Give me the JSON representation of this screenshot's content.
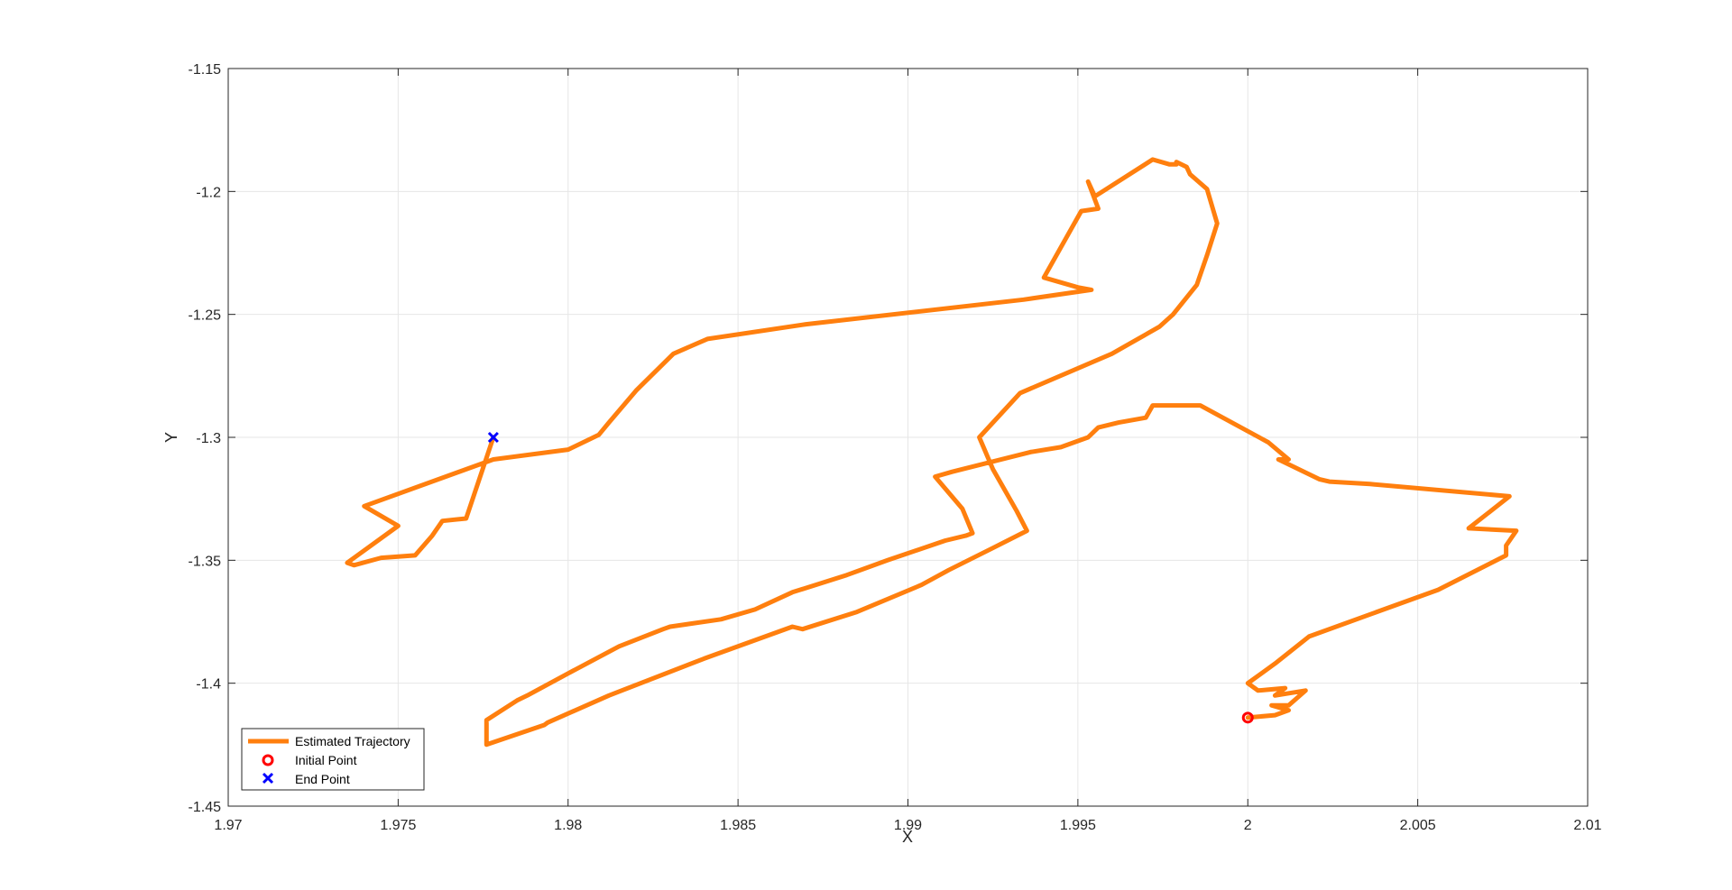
{
  "chart_data": {
    "type": "line",
    "title": "",
    "xlabel": "X",
    "ylabel": "Y",
    "xlim": [
      1.97,
      2.01
    ],
    "ylim": [
      -1.45,
      -1.15
    ],
    "xticks": [
      1.97,
      1.975,
      1.98,
      1.985,
      1.99,
      1.995,
      2,
      2.005,
      2.01
    ],
    "yticks": [
      -1.15,
      -1.2,
      -1.25,
      -1.3,
      -1.35,
      -1.4,
      -1.45
    ],
    "xtick_labels": [
      "1.97",
      "1.975",
      "1.98",
      "1.985",
      "1.99",
      "1.995",
      "2",
      "2.005",
      "2.01"
    ],
    "ytick_labels": [
      "-1.15",
      "-1.2",
      "-1.25",
      "-1.3",
      "-1.35",
      "-1.4",
      "-1.45"
    ],
    "grid": true,
    "legend_position": "bottom-left",
    "colors": {
      "trajectory": "#FF7F0E",
      "initial_point": "#FF0000",
      "end_point": "#0000FF",
      "grid": "#e6e6e6",
      "axes": "#262626"
    },
    "series": [
      {
        "name": "Estimated Trajectory",
        "kind": "line",
        "x": [
          2.0,
          2.0008,
          2.0012,
          2.0007,
          2.0012,
          2.0017,
          2.0008,
          2.0011,
          2.0003,
          2.0,
          2.0008,
          2.0018,
          2.0036,
          2.0056,
          2.0076,
          2.0076,
          2.0079,
          2.0065,
          2.0077,
          2.0036,
          2.0024,
          2.0021,
          2.0009,
          2.0012,
          2.0006,
          1.9986,
          1.9972,
          1.997,
          1.9962,
          1.9956,
          1.9953,
          1.9945,
          1.9936,
          1.9913,
          1.9908,
          1.9916,
          1.9919,
          1.9917,
          1.9911,
          1.9894,
          1.9882,
          1.9866,
          1.9855,
          1.9855,
          1.9845,
          1.983,
          1.9828,
          1.9815,
          1.98,
          1.9788,
          1.9785,
          1.9776,
          1.9776,
          1.9793,
          1.9794,
          1.9812,
          1.984,
          1.9866,
          1.9869,
          1.9885,
          1.9904,
          1.9912,
          1.9925,
          1.9935,
          1.9932,
          1.9925,
          1.9921,
          1.9933,
          1.996,
          1.9974,
          1.9978,
          1.9985,
          1.9988,
          1.9991,
          1.9988,
          1.9983,
          1.9982,
          1.9979,
          1.9979,
          1.9977,
          1.9972,
          1.9955,
          1.9953,
          1.9956,
          1.9951,
          1.994,
          1.995,
          1.9954,
          1.9934,
          1.987,
          1.9841,
          1.9831,
          1.982,
          1.9812,
          1.9809,
          1.98,
          1.9778,
          1.974,
          1.975,
          1.9735,
          1.9737,
          1.9745,
          1.9755,
          1.976,
          1.9763,
          1.977,
          1.9778
        ],
        "y": [
          -1.414,
          -1.413,
          -1.411,
          -1.409,
          -1.409,
          -1.403,
          -1.405,
          -1.402,
          -1.403,
          -1.4,
          -1.392,
          -1.381,
          -1.372,
          -1.362,
          -1.348,
          -1.344,
          -1.338,
          -1.337,
          -1.324,
          -1.319,
          -1.318,
          -1.317,
          -1.309,
          -1.309,
          -1.302,
          -1.287,
          -1.287,
          -1.292,
          -1.294,
          -1.296,
          -1.3,
          -1.304,
          -1.306,
          -1.314,
          -1.316,
          -1.329,
          -1.339,
          -1.34,
          -1.342,
          -1.35,
          -1.356,
          -1.363,
          -1.37,
          -1.37,
          -1.374,
          -1.377,
          -1.378,
          -1.385,
          -1.396,
          -1.405,
          -1.407,
          -1.415,
          -1.425,
          -1.417,
          -1.416,
          -1.405,
          -1.39,
          -1.377,
          -1.378,
          -1.371,
          -1.36,
          -1.354,
          -1.345,
          -1.338,
          -1.33,
          -1.313,
          -1.3,
          -1.282,
          -1.266,
          -1.255,
          -1.25,
          -1.238,
          -1.226,
          -1.213,
          -1.199,
          -1.193,
          -1.19,
          -1.188,
          -1.189,
          -1.189,
          -1.187,
          -1.202,
          -1.196,
          -1.207,
          -1.208,
          -1.235,
          -1.239,
          -1.24,
          -1.244,
          -1.254,
          -1.26,
          -1.266,
          -1.281,
          -1.294,
          -1.299,
          -1.305,
          -1.309,
          -1.328,
          -1.336,
          -1.351,
          -1.352,
          -1.349,
          -1.348,
          -1.34,
          -1.334,
          -1.333,
          -1.3
        ]
      },
      {
        "name": "Initial Point",
        "kind": "marker",
        "marker": "circle",
        "x": [
          2.0
        ],
        "y": [
          -1.414
        ]
      },
      {
        "name": "End Point",
        "kind": "marker",
        "marker": "x",
        "x": [
          1.9778
        ],
        "y": [
          -1.3
        ]
      }
    ]
  }
}
